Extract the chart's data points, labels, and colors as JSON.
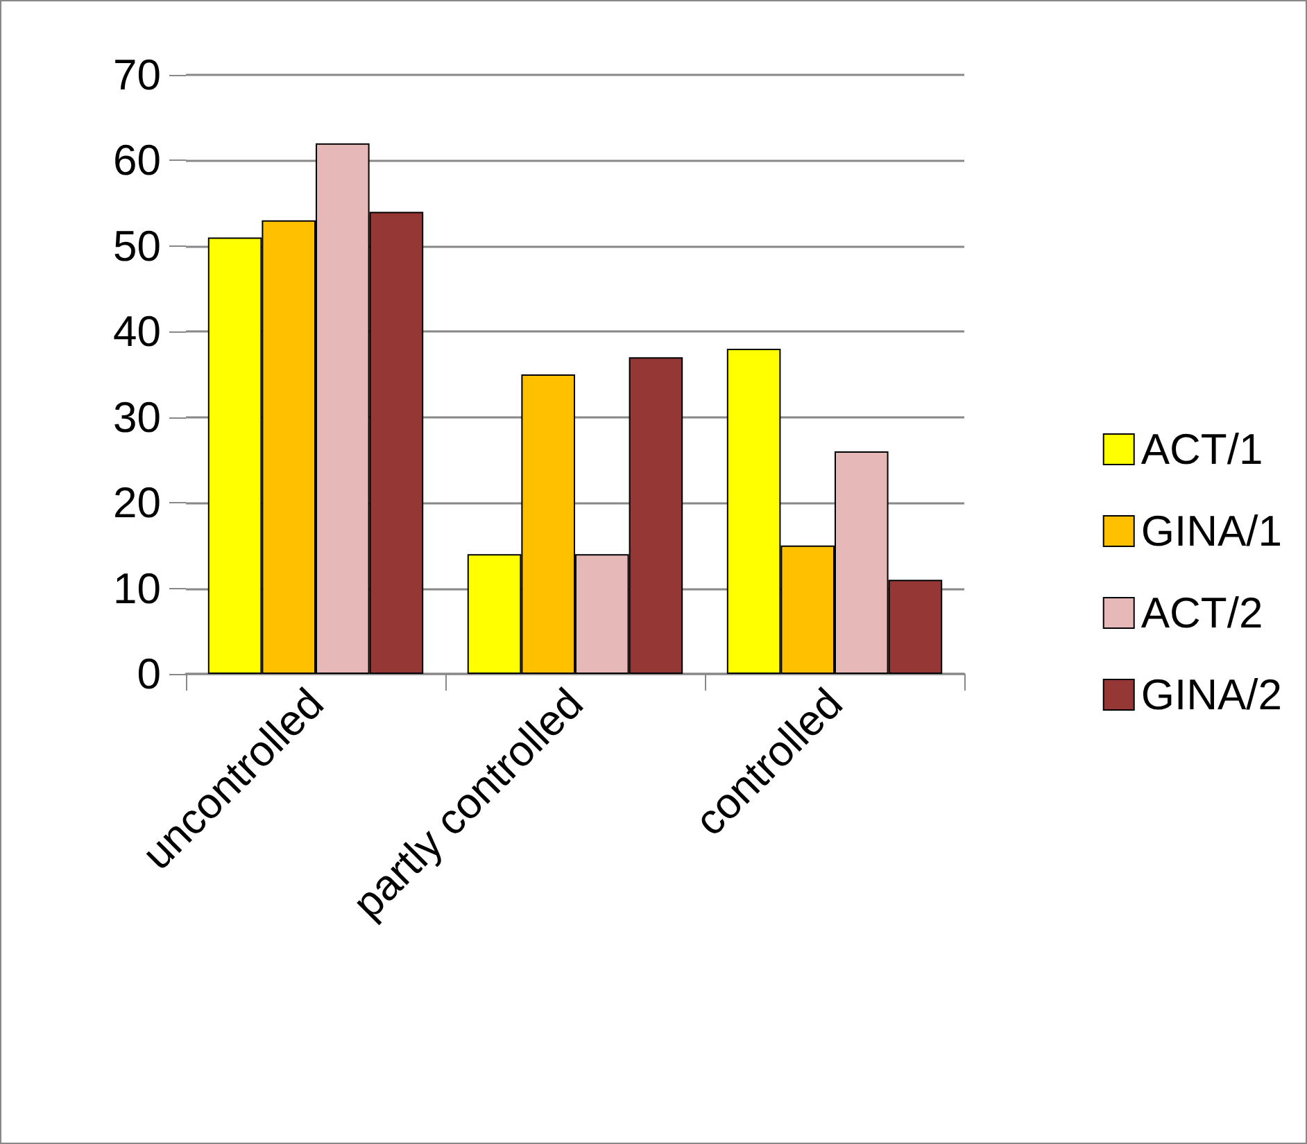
{
  "chart_data": {
    "type": "bar",
    "categories": [
      "uncontrolled",
      "partly controlled",
      "controlled"
    ],
    "series": [
      {
        "name": "ACT/1",
        "color": "#ffff00",
        "values": [
          51,
          14,
          38
        ]
      },
      {
        "name": "GINA/1",
        "color": "#ffc000",
        "values": [
          53,
          35,
          15
        ]
      },
      {
        "name": "ACT/2",
        "color": "#e6b9b8",
        "values": [
          62,
          14,
          26
        ]
      },
      {
        "name": "GINA/2",
        "color": "#953735",
        "values": [
          54,
          37,
          11
        ]
      }
    ],
    "ylim": [
      0,
      70
    ],
    "yticks": [
      0,
      10,
      20,
      30,
      40,
      50,
      60,
      70
    ],
    "grid": "y",
    "legend": "right"
  }
}
